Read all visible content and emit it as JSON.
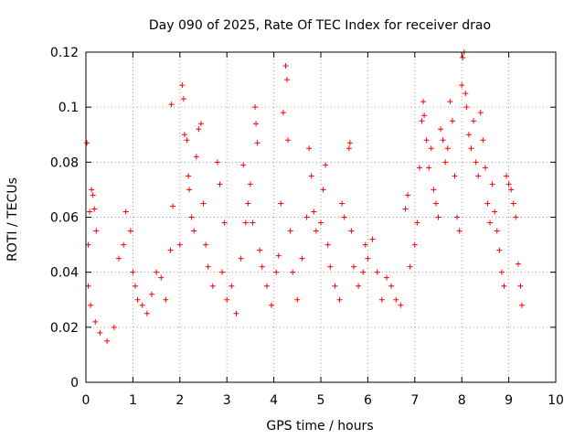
{
  "chart_data": {
    "type": "scatter",
    "title": "Day 090 of 2025, Rate Of TEC Index for receiver drao",
    "xlabel": "GPS time / hours",
    "ylabel": "ROTI / TECUs",
    "xlim": [
      0,
      10
    ],
    "ylim": [
      0,
      0.12
    ],
    "xticks": [
      0,
      1,
      2,
      3,
      4,
      5,
      6,
      7,
      8,
      9,
      10
    ],
    "xtick_labels": [
      "0",
      "1",
      "2",
      "3",
      "4",
      "5",
      "6",
      "7",
      "8",
      "9",
      "10"
    ],
    "yticks": [
      0,
      0.02,
      0.04,
      0.06,
      0.08,
      0.1,
      0.12
    ],
    "ytick_labels": [
      "0",
      "0.02",
      "0.04",
      "0.06",
      "0.08",
      "0.1",
      "0.12"
    ],
    "grid": true,
    "marker": "+",
    "color": "#ff0000",
    "series": [
      {
        "name": "ROTI",
        "points": [
          [
            0.02,
            0.087
          ],
          [
            0.05,
            0.05
          ],
          [
            0.08,
            0.062
          ],
          [
            0.12,
            0.07
          ],
          [
            0.15,
            0.068
          ],
          [
            0.18,
            0.063
          ],
          [
            0.22,
            0.055
          ],
          [
            0.05,
            0.035
          ],
          [
            0.1,
            0.028
          ],
          [
            0.2,
            0.022
          ],
          [
            0.3,
            0.018
          ],
          [
            0.45,
            0.015
          ],
          [
            0.6,
            0.02
          ],
          [
            0.7,
            0.045
          ],
          [
            0.8,
            0.05
          ],
          [
            0.85,
            0.062
          ],
          [
            0.95,
            0.055
          ],
          [
            1.0,
            0.04
          ],
          [
            1.05,
            0.035
          ],
          [
            1.1,
            0.03
          ],
          [
            1.2,
            0.028
          ],
          [
            1.3,
            0.025
          ],
          [
            1.4,
            0.032
          ],
          [
            1.5,
            0.04
          ],
          [
            1.6,
            0.038
          ],
          [
            1.7,
            0.03
          ],
          [
            1.8,
            0.048
          ],
          [
            1.85,
            0.064
          ],
          [
            1.82,
            0.101
          ],
          [
            2.0,
            0.05
          ],
          [
            2.05,
            0.108
          ],
          [
            2.08,
            0.103
          ],
          [
            2.1,
            0.09
          ],
          [
            2.15,
            0.088
          ],
          [
            2.18,
            0.075
          ],
          [
            2.2,
            0.07
          ],
          [
            2.25,
            0.06
          ],
          [
            2.3,
            0.055
          ],
          [
            2.35,
            0.082
          ],
          [
            2.4,
            0.092
          ],
          [
            2.45,
            0.094
          ],
          [
            2.5,
            0.065
          ],
          [
            2.55,
            0.05
          ],
          [
            2.6,
            0.042
          ],
          [
            2.7,
            0.035
          ],
          [
            2.8,
            0.08
          ],
          [
            2.85,
            0.072
          ],
          [
            2.9,
            0.04
          ],
          [
            2.95,
            0.058
          ],
          [
            3.0,
            0.03
          ],
          [
            3.1,
            0.035
          ],
          [
            3.2,
            0.025
          ],
          [
            3.3,
            0.045
          ],
          [
            3.35,
            0.079
          ],
          [
            3.4,
            0.058
          ],
          [
            3.45,
            0.065
          ],
          [
            3.5,
            0.072
          ],
          [
            3.55,
            0.058
          ],
          [
            3.6,
            0.1
          ],
          [
            3.62,
            0.094
          ],
          [
            3.65,
            0.087
          ],
          [
            3.7,
            0.048
          ],
          [
            3.75,
            0.042
          ],
          [
            3.85,
            0.035
          ],
          [
            3.95,
            0.028
          ],
          [
            4.05,
            0.04
          ],
          [
            4.1,
            0.046
          ],
          [
            4.15,
            0.065
          ],
          [
            4.2,
            0.098
          ],
          [
            4.25,
            0.115
          ],
          [
            4.28,
            0.11
          ],
          [
            4.3,
            0.088
          ],
          [
            4.35,
            0.055
          ],
          [
            4.4,
            0.04
          ],
          [
            4.5,
            0.03
          ],
          [
            4.6,
            0.045
          ],
          [
            4.7,
            0.06
          ],
          [
            4.75,
            0.085
          ],
          [
            4.8,
            0.075
          ],
          [
            4.85,
            0.062
          ],
          [
            4.9,
            0.055
          ],
          [
            5.0,
            0.058
          ],
          [
            5.05,
            0.07
          ],
          [
            5.1,
            0.079
          ],
          [
            5.15,
            0.05
          ],
          [
            5.2,
            0.042
          ],
          [
            5.3,
            0.035
          ],
          [
            5.4,
            0.03
          ],
          [
            5.45,
            0.065
          ],
          [
            5.5,
            0.06
          ],
          [
            5.6,
            0.085
          ],
          [
            5.62,
            0.087
          ],
          [
            5.65,
            0.055
          ],
          [
            5.7,
            0.042
          ],
          [
            5.8,
            0.035
          ],
          [
            5.9,
            0.04
          ],
          [
            5.95,
            0.05
          ],
          [
            6.0,
            0.045
          ],
          [
            6.1,
            0.052
          ],
          [
            6.2,
            0.04
          ],
          [
            6.3,
            0.03
          ],
          [
            6.4,
            0.038
          ],
          [
            6.5,
            0.035
          ],
          [
            6.6,
            0.03
          ],
          [
            6.7,
            0.028
          ],
          [
            6.8,
            0.063
          ],
          [
            6.85,
            0.068
          ],
          [
            6.9,
            0.042
          ],
          [
            7.0,
            0.05
          ],
          [
            7.05,
            0.058
          ],
          [
            7.1,
            0.078
          ],
          [
            7.15,
            0.095
          ],
          [
            7.18,
            0.102
          ],
          [
            7.2,
            0.097
          ],
          [
            7.25,
            0.088
          ],
          [
            7.3,
            0.078
          ],
          [
            7.35,
            0.085
          ],
          [
            7.4,
            0.07
          ],
          [
            7.45,
            0.065
          ],
          [
            7.5,
            0.06
          ],
          [
            7.55,
            0.092
          ],
          [
            7.6,
            0.088
          ],
          [
            7.65,
            0.08
          ],
          [
            7.7,
            0.085
          ],
          [
            7.75,
            0.102
          ],
          [
            7.8,
            0.095
          ],
          [
            7.85,
            0.075
          ],
          [
            7.9,
            0.06
          ],
          [
            7.95,
            0.055
          ],
          [
            8.0,
            0.108
          ],
          [
            8.02,
            0.118
          ],
          [
            8.05,
            0.12
          ],
          [
            8.08,
            0.105
          ],
          [
            8.1,
            0.1
          ],
          [
            8.15,
            0.09
          ],
          [
            8.2,
            0.085
          ],
          [
            8.25,
            0.095
          ],
          [
            8.3,
            0.08
          ],
          [
            8.35,
            0.075
          ],
          [
            8.4,
            0.098
          ],
          [
            8.45,
            0.088
          ],
          [
            8.5,
            0.078
          ],
          [
            8.55,
            0.065
          ],
          [
            8.6,
            0.058
          ],
          [
            8.65,
            0.072
          ],
          [
            8.7,
            0.062
          ],
          [
            8.75,
            0.055
          ],
          [
            8.8,
            0.048
          ],
          [
            8.85,
            0.04
          ],
          [
            8.9,
            0.035
          ],
          [
            8.95,
            0.075
          ],
          [
            9.0,
            0.072
          ],
          [
            9.05,
            0.07
          ],
          [
            9.1,
            0.065
          ],
          [
            9.15,
            0.06
          ],
          [
            9.2,
            0.043
          ],
          [
            9.25,
            0.035
          ],
          [
            9.28,
            0.028
          ]
        ]
      }
    ]
  }
}
